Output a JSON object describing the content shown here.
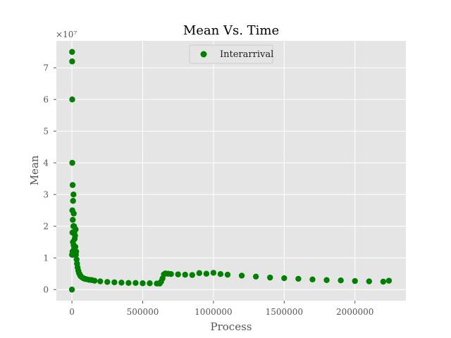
{
  "chart_data": {
    "type": "scatter",
    "title": "Mean Vs. Time",
    "xlabel": "Process",
    "ylabel": "Mean",
    "y_multiplier_label": "×10⁷",
    "y_multiplier": 10000000,
    "xlim": [
      -110000,
      2360000
    ],
    "ylim": [
      -3500000,
      78500000
    ],
    "xticks": [
      0,
      500000,
      1000000,
      1500000,
      2000000
    ],
    "xtick_labels": [
      "0",
      "500000",
      "1000000",
      "1500000",
      "2000000"
    ],
    "yticks": [
      0,
      10000000,
      20000000,
      30000000,
      40000000,
      50000000,
      60000000,
      70000000
    ],
    "ytick_labels": [
      "0",
      "1",
      "2",
      "3",
      "4",
      "5",
      "6",
      "7"
    ],
    "grid": true,
    "legend_position": "top-center",
    "series": [
      {
        "name": "Interarrival",
        "color": "#008000",
        "x": [
          0,
          500,
          1000,
          1500,
          2000,
          2500,
          3000,
          3500,
          4000,
          5000,
          6000,
          7000,
          8000,
          9000,
          10000,
          11000,
          12000,
          13000,
          14000,
          15000,
          16000,
          17000,
          18000,
          19000,
          20000,
          22000,
          24000,
          26000,
          28000,
          30000,
          33000,
          36000,
          40000,
          45000,
          50000,
          55000,
          60000,
          70000,
          80000,
          90000,
          100000,
          120000,
          140000,
          160000,
          200000,
          250000,
          300000,
          350000,
          400000,
          450000,
          500000,
          550000,
          600000,
          620000,
          630000,
          640000,
          650000,
          660000,
          680000,
          700000,
          750000,
          800000,
          850000,
          900000,
          950000,
          1000000,
          1050000,
          1100000,
          1200000,
          1300000,
          1400000,
          1500000,
          1600000,
          1700000,
          1800000,
          1900000,
          2000000,
          2100000,
          2200000,
          2240000
        ],
        "y": [
          0,
          11000000,
          75000000,
          72000000,
          60000000,
          40000000,
          25000000,
          18000000,
          12000000,
          33000000,
          22000000,
          15000000,
          28000000,
          11000000,
          20000000,
          30000000,
          14000000,
          24000000,
          12000000,
          20000000,
          13000000,
          18000000,
          11500000,
          16000000,
          12000000,
          17000000,
          13500000,
          19000000,
          11000000,
          12000000,
          9500000,
          8200000,
          7000000,
          6000000,
          5200000,
          4800000,
          4300000,
          3900000,
          3600000,
          3400000,
          3300000,
          3100000,
          3000000,
          2800000,
          2600000,
          2400000,
          2300000,
          2200000,
          2100000,
          2100000,
          2000000,
          2000000,
          1900000,
          1900000,
          2500000,
          3500000,
          4800000,
          5100000,
          5000000,
          4900000,
          4800000,
          4700000,
          4600000,
          5200000,
          5000000,
          5300000,
          4900000,
          4700000,
          4400000,
          4100000,
          3800000,
          3600000,
          3400000,
          3200000,
          3000000,
          2900000,
          2700000,
          2600000,
          2500000,
          2800000
        ]
      }
    ]
  }
}
